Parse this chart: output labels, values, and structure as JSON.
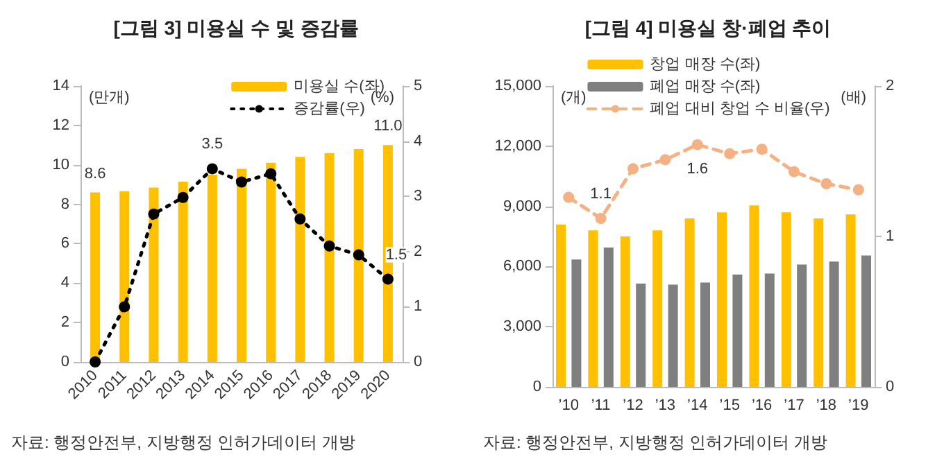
{
  "chart_data": [
    {
      "type": "bar",
      "title": "[그림 3] 미용실 수 및 증감률",
      "ylabel": "(만개)",
      "y2label": "(%)",
      "categories": [
        "2010",
        "2011",
        "2012",
        "2013",
        "2014",
        "2015",
        "2016",
        "2017",
        "2018",
        "2019",
        "2020"
      ],
      "series": [
        {
          "name": "미용실 수(좌)",
          "color": "#ffc000",
          "values": [
            8.6,
            8.65,
            8.85,
            9.15,
            9.5,
            9.8,
            10.1,
            10.4,
            10.6,
            10.8,
            11.0
          ],
          "value_labels": [
            "8.6",
            null,
            null,
            null,
            null,
            null,
            null,
            null,
            null,
            null,
            "11.0"
          ]
        },
        {
          "name": "증감률(우)",
          "type": "line",
          "axis": "y2",
          "color": "#000000",
          "marker": "circle",
          "line_style": "dotted",
          "values": [
            0,
            1.0,
            2.68,
            2.98,
            3.5,
            3.26,
            3.41,
            2.59,
            2.1,
            1.94,
            1.5
          ],
          "value_labels": [
            null,
            null,
            null,
            null,
            "3.5",
            null,
            null,
            null,
            null,
            null,
            "1.5"
          ]
        }
      ],
      "ylim": [
        0,
        14
      ],
      "yticks": [
        0,
        2,
        4,
        6,
        8,
        10,
        12,
        14
      ],
      "y2lim": [
        0,
        5
      ],
      "y2ticks": [
        0,
        1,
        2,
        3,
        4,
        5
      ],
      "grid": false,
      "legend": "top right",
      "annotations": [
        "자료: 행정안전부, 지방행정 인허가데이터 개방"
      ]
    },
    {
      "type": "bar",
      "title": "[그림 4] 미용실 창·폐업 추이",
      "ylabel": "(개)",
      "y2label": "(배)",
      "categories": [
        "’10",
        "’11",
        "’12",
        "’13",
        "’14",
        "’15",
        "’16",
        "’17",
        "’18",
        "’19"
      ],
      "series": [
        {
          "name": "창업 매장 수(좌)",
          "color": "#ffc000",
          "values": [
            8100,
            7800,
            7500,
            7800,
            8400,
            8700,
            9050,
            8700,
            8400,
            8600
          ]
        },
        {
          "name": "폐업 매장 수(좌)",
          "color": "#7f7f7f",
          "values": [
            6350,
            6950,
            5150,
            5100,
            5200,
            5600,
            5650,
            6100,
            6250,
            6550
          ]
        },
        {
          "name": "폐업 대비 창업 수 비율(우)",
          "type": "line",
          "axis": "y2",
          "color": "#f4b183",
          "marker": "circle",
          "line_style": "dashed",
          "values": [
            1.26,
            1.12,
            1.45,
            1.51,
            1.61,
            1.55,
            1.58,
            1.43,
            1.35,
            1.31
          ],
          "value_labels": [
            null,
            "1.1",
            null,
            null,
            "1.6",
            null,
            null,
            null,
            null,
            null
          ]
        }
      ],
      "ylim": [
        0,
        15000
      ],
      "yticks": [
        0,
        {
          "value": 3000,
          "label": "3,000"
        },
        {
          "value": 6000,
          "label": "6,000"
        },
        {
          "value": 9000,
          "label": "9,000"
        },
        {
          "value": 12000,
          "label": "12,000"
        },
        {
          "value": 15000,
          "label": "15,000"
        }
      ],
      "y2lim": [
        0,
        2
      ],
      "y2ticks": [
        0,
        1,
        2
      ],
      "grid": false,
      "legend": "top",
      "annotations": [
        "자료: 행정안전부, 지방행정 인허가데이터 개방"
      ]
    }
  ]
}
